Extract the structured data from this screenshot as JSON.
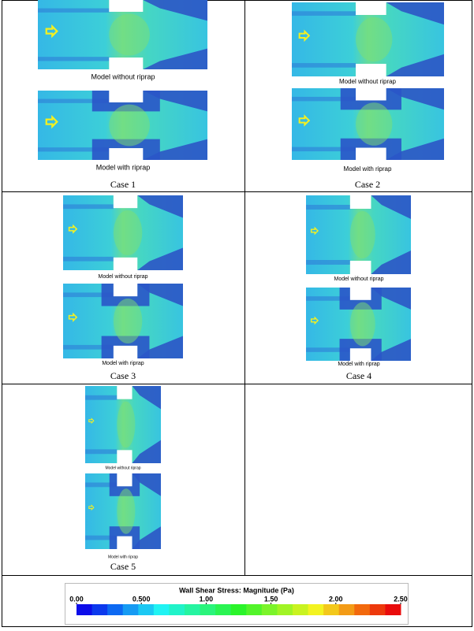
{
  "cells": [
    {
      "captions": [
        "Model without  riprap",
        "Model with riprap"
      ],
      "label": "Case 1"
    },
    {
      "captions": [
        "Model without  riprap",
        "Model with riprap"
      ],
      "label": "Case 2"
    },
    {
      "captions": [
        "Model without  riprap",
        "Model with riprap"
      ],
      "label": "Case 3"
    },
    {
      "captions": [
        "Model without  riprap",
        "Model with riprap"
      ],
      "label": "Case 4"
    },
    {
      "captions": [
        "Model without  riprap",
        "Model with riprap"
      ],
      "label": "Case 5"
    }
  ],
  "colorbar": {
    "title": "Wall Shear Stress: Magnitude (Pa)",
    "lim": [
      0,
      2.5
    ],
    "ticks": [
      {
        "value": 0,
        "label": "0.00"
      },
      {
        "value": 0.5,
        "label": "0.500"
      },
      {
        "value": 1,
        "label": "1.00"
      },
      {
        "value": 1.5,
        "label": "1.50"
      },
      {
        "value": 2,
        "label": "2.00"
      },
      {
        "value": 2.5,
        "label": "2.50"
      }
    ]
  }
}
